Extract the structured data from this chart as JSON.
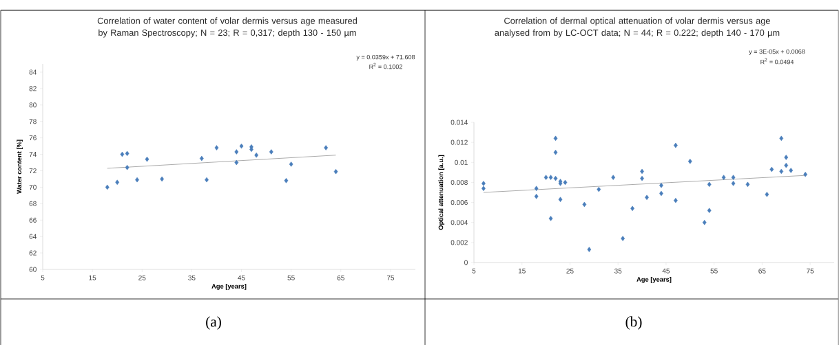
{
  "chart_data": [
    {
      "type": "scatter",
      "title": "Correlation of water content of volar dermis versus age measured by Raman Spectroscopy; N = 23;  R = 0,317; depth 130 - 150 µm",
      "xlabel": "Age [years]",
      "ylabel": "Water content [%]",
      "xlim": [
        5,
        80
      ],
      "xticks": [
        5,
        15,
        25,
        35,
        45,
        55,
        65,
        75
      ],
      "ylim": [
        60,
        85
      ],
      "yticks": [
        60,
        62,
        64,
        66,
        68,
        70,
        72,
        74,
        76,
        78,
        80,
        82,
        84
      ],
      "annotations": [
        "y = 0.0359x + 71.608",
        "R$^{2}$ = 0.1002",
        "(a)"
      ],
      "series": [
        {
          "marker": "diamond",
          "color": "#4a7ebb",
          "x": [
            18,
            20,
            21,
            22,
            22,
            24,
            26,
            29,
            37,
            38,
            40,
            44,
            44,
            45,
            47,
            47,
            48,
            51,
            54,
            55,
            62,
            64
          ],
          "values": [
            70.0,
            70.6,
            74.0,
            74.1,
            72.4,
            70.9,
            73.4,
            71.0,
            73.5,
            70.9,
            74.8,
            74.3,
            73.0,
            75.0,
            74.9,
            74.6,
            73.9,
            74.3,
            70.8,
            72.8,
            74.8,
            71.9
          ]
        },
        {
          "type": "line",
          "color": "#808080",
          "x": [
            18,
            64
          ],
          "values": [
            72.3,
            73.9
          ]
        }
      ]
    },
    {
      "type": "scatter",
      "title": "Correlation of dermal optical attenuation of volar dermis versus age analysed from by LC-OCT data; N = 44;  R = 0.222; depth 140 - 170 µm",
      "xlabel": "Age [years]",
      "ylabel": "Optical attenuation  [a.u.]",
      "xlim": [
        5,
        80
      ],
      "xticks": [
        5,
        15,
        25,
        35,
        45,
        55,
        65,
        75
      ],
      "ylim": [
        0,
        0.014
      ],
      "yticks": [
        0,
        0.002,
        0.004,
        0.006,
        0.008,
        0.01,
        0.012,
        0.014
      ],
      "annotations": [
        "y = 3E-05x + 0.0068",
        "R$^{2}$ = 0.0494",
        "(b)"
      ],
      "series": [
        {
          "marker": "diamond",
          "color": "#4a7ebb",
          "x": [
            7,
            7,
            18,
            18,
            20,
            21,
            21,
            22,
            22,
            22,
            23,
            23,
            23,
            24,
            28,
            29,
            31,
            34,
            36,
            38,
            40,
            40,
            41,
            44,
            44,
            47,
            47,
            50,
            53,
            54,
            54,
            57,
            59,
            59,
            62,
            66,
            67,
            69,
            69,
            70,
            70,
            71,
            74
          ],
          "values": [
            0.0079,
            0.0074,
            0.0074,
            0.0066,
            0.0085,
            0.0085,
            0.0044,
            0.0084,
            0.0124,
            0.011,
            0.0081,
            0.0079,
            0.0063,
            0.008,
            0.0058,
            0.0013,
            0.0073,
            0.0085,
            0.0024,
            0.0054,
            0.0091,
            0.0084,
            0.0065,
            0.0077,
            0.0069,
            0.0062,
            0.0117,
            0.0101,
            0.004,
            0.0078,
            0.0052,
            0.0085,
            0.0085,
            0.0079,
            0.0078,
            0.0068,
            0.0093,
            0.0091,
            0.0124,
            0.0105,
            0.0097,
            0.0092,
            0.0088
          ]
        },
        {
          "type": "line",
          "color": "#808080",
          "x": [
            7,
            74
          ],
          "values": [
            0.007,
            0.0087
          ]
        }
      ]
    }
  ]
}
